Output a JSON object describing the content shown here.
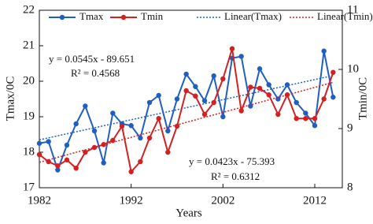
{
  "chart_data": {
    "type": "line",
    "x": [
      1982,
      1983,
      1984,
      1985,
      1986,
      1987,
      1988,
      1989,
      1990,
      1991,
      1992,
      1993,
      1994,
      1995,
      1996,
      1997,
      1998,
      1999,
      2000,
      2001,
      2002,
      2003,
      2004,
      2005,
      2006,
      2007,
      2008,
      2009,
      2010,
      2011,
      2012,
      2013,
      2014
    ],
    "series": [
      {
        "name": "Tmax",
        "trend_name": "Linear(Tmax)",
        "color": "#1f5fc0",
        "axis": "y",
        "values": [
          18.25,
          18.3,
          17.5,
          18.2,
          18.8,
          19.3,
          18.6,
          17.7,
          19.1,
          18.8,
          18.75,
          18.4,
          19.4,
          19.6,
          18.6,
          19.5,
          20.2,
          19.85,
          19.45,
          20.15,
          19.0,
          20.65,
          20.7,
          19.3,
          20.35,
          19.9,
          19.5,
          19.9,
          19.4,
          19.1,
          18.75,
          20.85,
          19.55
        ]
      },
      {
        "name": "Tmin",
        "trend_name": "Linear(Tmin)",
        "color": "#d42020",
        "axis": "y2",
        "values": [
          8.56,
          8.44,
          8.37,
          8.47,
          8.33,
          8.6,
          8.68,
          8.73,
          8.8,
          9.04,
          8.27,
          8.44,
          8.84,
          9.17,
          8.6,
          9.04,
          9.64,
          9.55,
          9.24,
          9.44,
          9.84,
          10.35,
          9.3,
          9.7,
          9.68,
          9.57,
          9.24,
          9.57,
          9.17,
          9.17,
          9.17,
          9.5,
          9.95
        ]
      }
    ],
    "xlim": [
      1982,
      2015
    ],
    "xticks": [
      1982,
      1992,
      2002,
      2012
    ],
    "ylim": [
      17,
      22
    ],
    "yticks": [
      17,
      18,
      19,
      20,
      21,
      22
    ],
    "y2lim": [
      8,
      11
    ],
    "y2ticks": [
      8,
      9,
      10,
      11
    ],
    "x_label": "Years",
    "y_label": "Tmax/0C",
    "y2_label": "Tmin/0C",
    "annotations": [
      "y = 0.0545x - 89.651",
      "R² = 0.4568",
      "y = 0.0423x - 75.393",
      "R² = 0.6312"
    ]
  }
}
